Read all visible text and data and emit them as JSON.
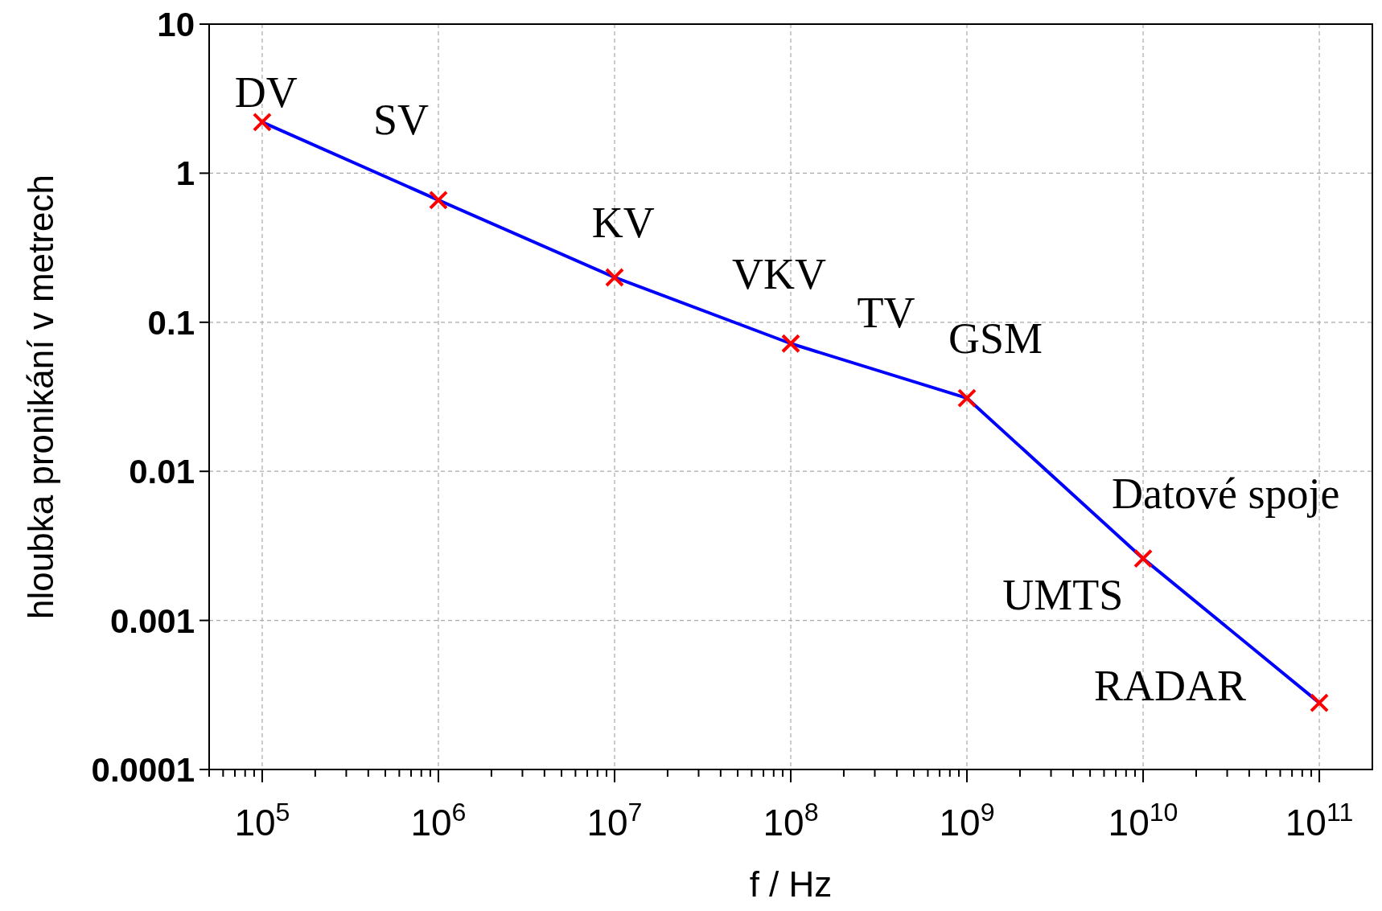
{
  "chart_data": {
    "type": "line",
    "xlabel": "f / Hz",
    "ylabel": "hloubka pronikání v metrech",
    "log": "xy",
    "grid": true,
    "x": [
      100000,
      1000000,
      10000000,
      100000000,
      1000000000,
      10000000000,
      100000000000
    ],
    "series": [
      {
        "color": "#0000ff",
        "marker": "none",
        "line_style": "solid",
        "values": [
          2.2,
          0.66,
          0.2,
          0.072,
          0.031,
          0.0026,
          0.00028
        ]
      },
      {
        "type": "scatter",
        "color": "#ff0000",
        "marker": "cross",
        "values": [
          2.2,
          0.66,
          0.2,
          0.072,
          0.031,
          0.0026,
          0.00028
        ]
      }
    ],
    "xlim": [
      50000,
      200000000000
    ],
    "xticks": [
      {
        "value": 50000,
        "label": null
      },
      {
        "value": 60000,
        "label": null
      },
      {
        "value": 70000,
        "label": null
      },
      {
        "value": 80000,
        "label": null
      },
      {
        "value": 90000,
        "label": null
      },
      {
        "value": 100000,
        "label": "10$^{5}$"
      },
      {
        "value": 200000,
        "label": null
      },
      {
        "value": 300000,
        "label": null
      },
      {
        "value": 400000,
        "label": null
      },
      {
        "value": 500000,
        "label": null
      },
      {
        "value": 600000,
        "label": null
      },
      {
        "value": 700000,
        "label": null
      },
      {
        "value": 800000,
        "label": null
      },
      {
        "value": 900000,
        "label": null
      },
      {
        "value": 1000000,
        "label": "10$^{6}$"
      },
      {
        "value": 2000000,
        "label": null
      },
      {
        "value": 3000000,
        "label": null
      },
      {
        "value": 4000000,
        "label": null
      },
      {
        "value": 5000000,
        "label": null
      },
      {
        "value": 6000000,
        "label": null
      },
      {
        "value": 7000000,
        "label": null
      },
      {
        "value": 8000000,
        "label": null
      },
      {
        "value": 9000000,
        "label": null
      },
      {
        "value": 10000000,
        "label": "10$^{7}$"
      },
      {
        "value": 20000000,
        "label": null
      },
      {
        "value": 30000000,
        "label": null
      },
      {
        "value": 40000000,
        "label": null
      },
      {
        "value": 50000000,
        "label": null
      },
      {
        "value": 60000000,
        "label": null
      },
      {
        "value": 70000000,
        "label": null
      },
      {
        "value": 80000000,
        "label": null
      },
      {
        "value": 90000000,
        "label": null
      },
      {
        "value": 100000000,
        "label": "10$^{8}$"
      },
      {
        "value": 200000000,
        "label": null
      },
      {
        "value": 300000000,
        "label": null
      },
      {
        "value": 400000000,
        "label": null
      },
      {
        "value": 500000000,
        "label": null
      },
      {
        "value": 600000000,
        "label": null
      },
      {
        "value": 700000000,
        "label": null
      },
      {
        "value": 800000000,
        "label": null
      },
      {
        "value": 900000000,
        "label": null
      },
      {
        "value": 1000000000,
        "label": "10$^{9}$"
      },
      {
        "value": 2000000000,
        "label": null
      },
      {
        "value": 3000000000,
        "label": null
      },
      {
        "value": 4000000000,
        "label": null
      },
      {
        "value": 5000000000,
        "label": null
      },
      {
        "value": 6000000000,
        "label": null
      },
      {
        "value": 7000000000,
        "label": null
      },
      {
        "value": 8000000000,
        "label": null
      },
      {
        "value": 9000000000,
        "label": null
      },
      {
        "value": 10000000000,
        "label": "10$^{10}$"
      },
      {
        "value": 20000000000,
        "label": null
      },
      {
        "value": 30000000000,
        "label": null
      },
      {
        "value": 40000000000,
        "label": null
      },
      {
        "value": 50000000000,
        "label": null
      },
      {
        "value": 60000000000,
        "label": null
      },
      {
        "value": 70000000000,
        "label": null
      },
      {
        "value": 80000000000,
        "label": null
      },
      {
        "value": 90000000000,
        "label": null
      },
      {
        "value": 100000000000,
        "label": "10$^{11}$"
      }
    ],
    "ylim": [
      0.0001,
      10
    ],
    "yticks": [
      0.0001,
      0.001,
      0.01,
      0.1,
      1,
      10
    ],
    "annotations": [
      "DV",
      "SV",
      "KV",
      "VKV",
      "TV",
      "GSM",
      "Datové spoje",
      "UMTS",
      "RADAR"
    ]
  }
}
